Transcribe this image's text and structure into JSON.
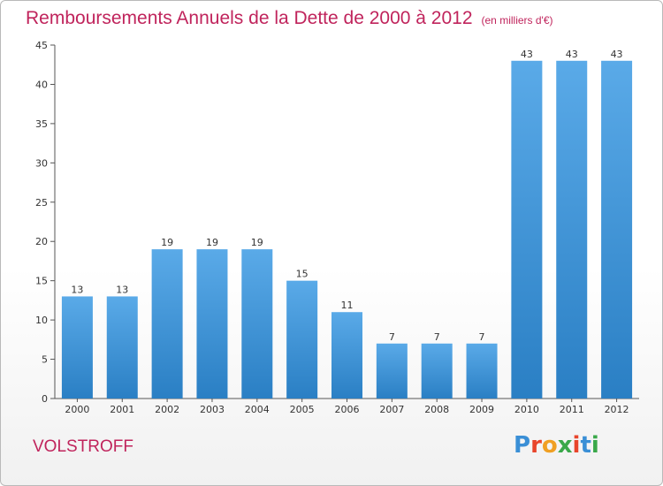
{
  "title": "Remboursements Annuels de la Dette de 2000 à 2012",
  "unit": "(en milliers d'€)",
  "city": "VOLSTROFF",
  "logo": {
    "text": "Proxiti",
    "letter_colors": [
      "#3a8fd6",
      "#e8452b",
      "#f0a023",
      "#3aa84a",
      "#e8452b",
      "#3a8fd6",
      "#3aa84a"
    ]
  },
  "colors": {
    "bar_light": "#5aaae8",
    "bar_dark": "#2a7fc4",
    "accent": "#c0245c"
  },
  "chart_data": {
    "type": "bar",
    "categories": [
      "2000",
      "2001",
      "2002",
      "2003",
      "2004",
      "2005",
      "2006",
      "2007",
      "2008",
      "2009",
      "2010",
      "2011",
      "2012"
    ],
    "values": [
      13,
      13,
      19,
      19,
      19,
      15,
      11,
      7,
      7,
      7,
      43,
      43,
      43
    ],
    "ylim": [
      0,
      45
    ],
    "yticks": [
      0,
      5,
      10,
      15,
      20,
      25,
      30,
      35,
      40,
      45
    ],
    "grid": false,
    "legend": "none"
  }
}
